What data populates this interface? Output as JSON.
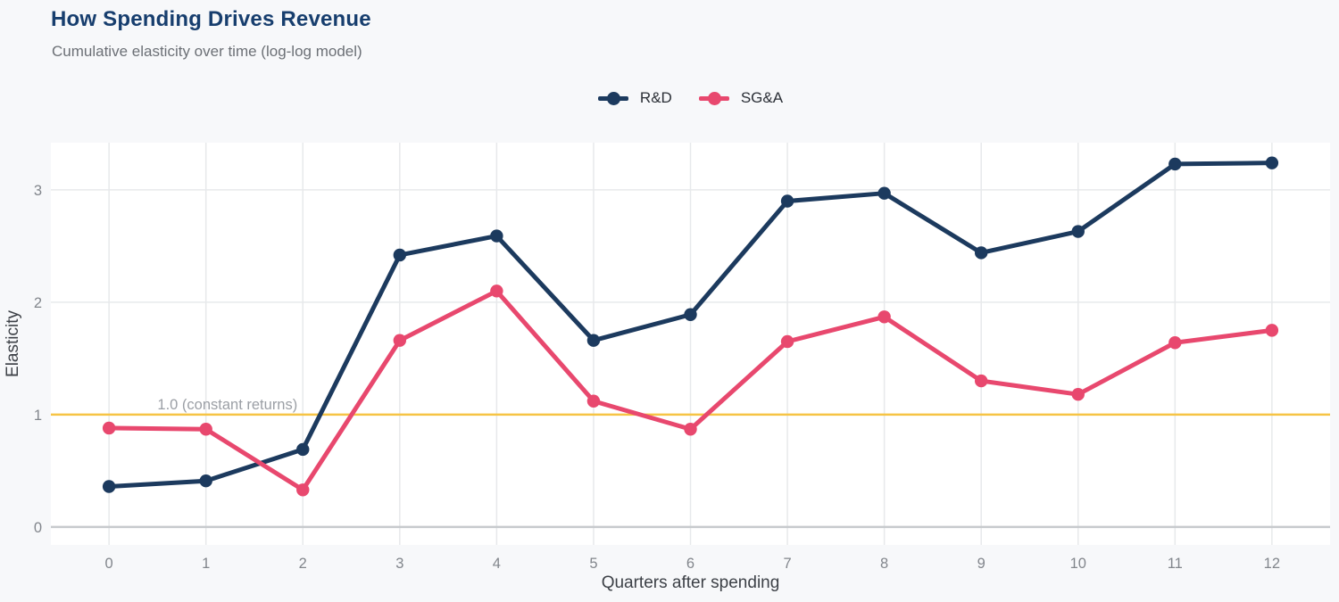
{
  "header": {
    "title": "How Spending Drives Revenue",
    "subtitle": "Cumulative elasticity over time (log-log model)"
  },
  "chart_data": {
    "type": "line",
    "title": "How Spending Drives Revenue",
    "subtitle": "Cumulative elasticity over time (log-log model)",
    "xlabel": "Quarters after spending",
    "ylabel": "Elasticity",
    "x": [
      0,
      1,
      2,
      3,
      4,
      5,
      6,
      7,
      8,
      9,
      10,
      11,
      12
    ],
    "series": [
      {
        "name": "R&D",
        "color": "#1c3a5e",
        "values": [
          0.36,
          0.41,
          0.69,
          2.42,
          2.59,
          1.66,
          1.89,
          2.9,
          2.97,
          2.44,
          2.63,
          3.23,
          3.24
        ]
      },
      {
        "name": "SG&A",
        "color": "#e8486e",
        "values": [
          0.88,
          0.87,
          0.33,
          1.66,
          2.1,
          1.12,
          0.87,
          1.65,
          1.87,
          1.3,
          1.18,
          1.64,
          1.75
        ]
      }
    ],
    "reference_line": {
      "y": 1.0,
      "label": "1.0 (constant returns)",
      "color": "#f6c445"
    },
    "xticks": [
      0,
      1,
      2,
      3,
      4,
      5,
      6,
      7,
      8,
      9,
      10,
      11,
      12
    ],
    "yticks": [
      0,
      1,
      2,
      3
    ],
    "xlim": [
      -0.6,
      12.6
    ],
    "ylim": [
      -0.16,
      3.42
    ],
    "grid": true,
    "legend_position": "top-center",
    "style": {
      "plot_background": "#ffffff",
      "page_background": "#f7f8fa",
      "grid_color": "#e7e9eb",
      "zero_line_color": "#c7cacd",
      "tick_color": "#82868c",
      "axis_title_color": "#3d4147",
      "annotation_color": "#9b9fa5",
      "title_color": "#173e6e",
      "subtitle_color": "#6c7076"
    }
  }
}
